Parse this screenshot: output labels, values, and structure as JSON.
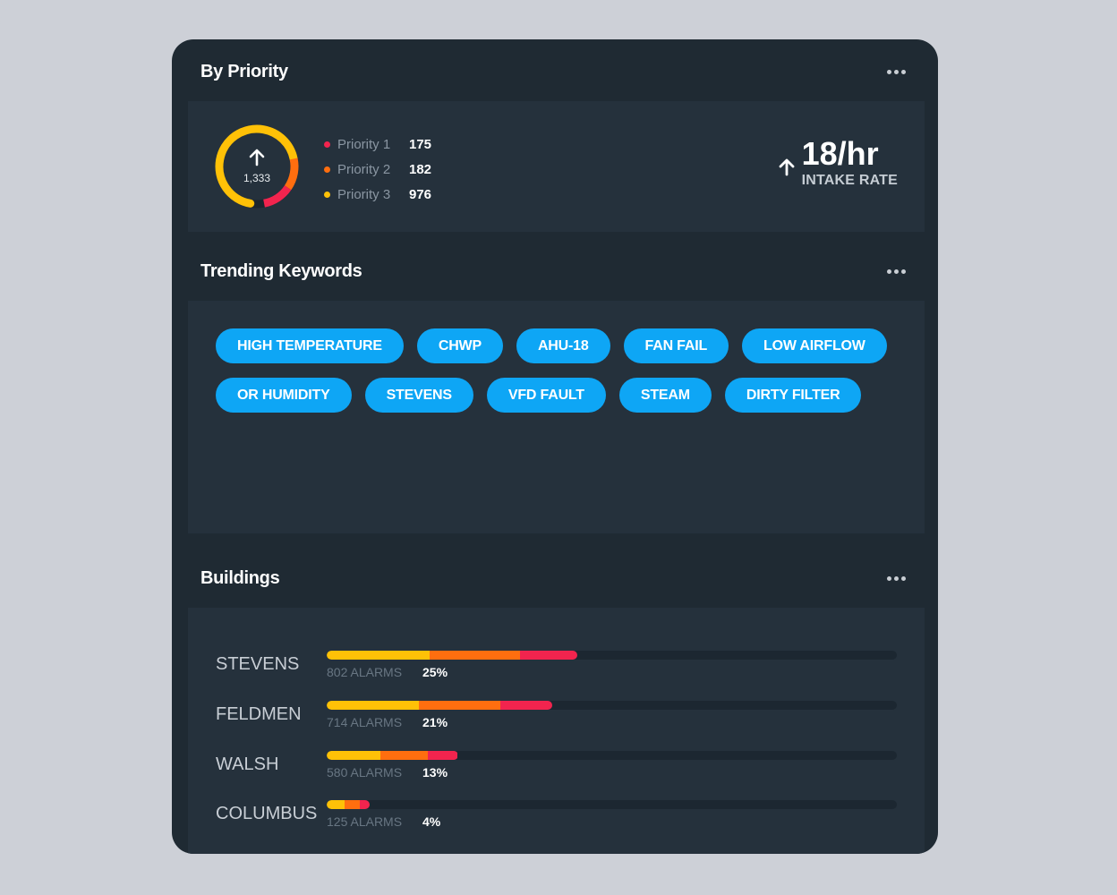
{
  "colors": {
    "priority1": "#f2244e",
    "priority2": "#ff6e0f",
    "priority3": "#ffc107",
    "accent": "#0ea6f5"
  },
  "priority": {
    "title": "By Priority",
    "more_icon": "more-horizontal-icon",
    "total": "1,333",
    "items": [
      {
        "label": "Priority 1",
        "value": "175",
        "count": 175
      },
      {
        "label": "Priority 2",
        "value": "182",
        "count": 182
      },
      {
        "label": "Priority 3",
        "value": "976",
        "count": 976
      }
    ],
    "intake": {
      "value": "18/hr",
      "label": "INTAKE RATE",
      "icon": "arrow-up-icon"
    }
  },
  "keywords": {
    "title": "Trending Keywords",
    "tags": [
      "HIGH TEMPERATURE",
      "CHWP",
      "AHU-18",
      "FAN FAIL",
      "LOW AIRFLOW",
      "OR HUMIDITY",
      "STEVENS",
      "VFD FAULT",
      "STEAM",
      "DIRTY FILTER"
    ]
  },
  "buildings": {
    "title": "Buildings",
    "rows": [
      {
        "name": "STEVENS",
        "alarms": "802 ALARMS",
        "percent": "25%",
        "total_fraction": 0.44,
        "split": [
          0.41,
          0.36,
          0.23
        ]
      },
      {
        "name": "FELDMEN",
        "alarms": "714 ALARMS",
        "percent": "21%",
        "total_fraction": 0.395,
        "split": [
          0.41,
          0.36,
          0.23
        ]
      },
      {
        "name": "WALSH",
        "alarms": "580 ALARMS",
        "percent": "13%",
        "total_fraction": 0.23,
        "split": [
          0.41,
          0.36,
          0.23
        ]
      },
      {
        "name": "COLUMBUS",
        "alarms": "125 ALARMS",
        "percent": "4%",
        "total_fraction": 0.075,
        "split": [
          0.42,
          0.36,
          0.22
        ]
      }
    ]
  }
}
